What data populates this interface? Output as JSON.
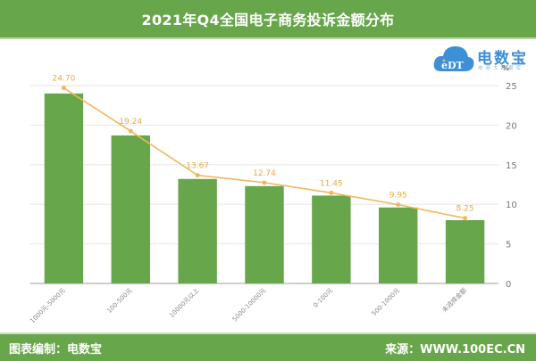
{
  "header": {
    "title": "2021年Q4全国电子商务投诉金额分布"
  },
  "logo": {
    "brand": "电数宝",
    "sub": "电商大数据库",
    "cloud_text": "eDT"
  },
  "footer": {
    "left": "图表编制：电数宝",
    "right": "来源：WWW.100EC.CN"
  },
  "colors": {
    "header_bg": "#68a64b",
    "bar": "#67a64b",
    "line": "#f0b75a",
    "label": "#e8a84a",
    "grid": "#e6e6e6"
  },
  "chart_data": {
    "type": "bar",
    "title": "2021年Q4全国电子商务投诉金额分布",
    "xlabel": "",
    "ylabel": "%",
    "ylim": [
      0,
      25
    ],
    "yticks": [
      0,
      5,
      10,
      15,
      20,
      25
    ],
    "y_axis_position": "right",
    "grid": true,
    "legend": null,
    "categories": [
      "1000元-5000元",
      "100-500元",
      "10000元以上",
      "5000-10000元",
      "0-100元",
      "500-1000元",
      "未选择金额"
    ],
    "series": [
      {
        "name": "bars",
        "type": "bar",
        "color": "#67a64b",
        "values": [
          24.0,
          18.7,
          13.2,
          12.3,
          11.1,
          9.6,
          8.0
        ]
      },
      {
        "name": "line",
        "type": "line",
        "color": "#f0b75a",
        "values": [
          24.7,
          19.24,
          13.67,
          12.74,
          11.45,
          9.95,
          8.25
        ],
        "labels": [
          "24.70",
          "19.24",
          "13.67",
          "12.74",
          "11.45",
          "9.95",
          "8.25"
        ]
      }
    ]
  }
}
